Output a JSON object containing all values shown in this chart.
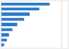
{
  "values": [
    16.0,
    12.5,
    9.5,
    7.5,
    5.2,
    3.7,
    2.6,
    1.8,
    1.0
  ],
  "bar_color": "#2878c8",
  "background_color": "#f0f0f0",
  "plot_bg_color": "#ffffff",
  "grid_color": "#cccccc",
  "xlim": [
    0,
    22
  ],
  "bar_height": 0.6
}
